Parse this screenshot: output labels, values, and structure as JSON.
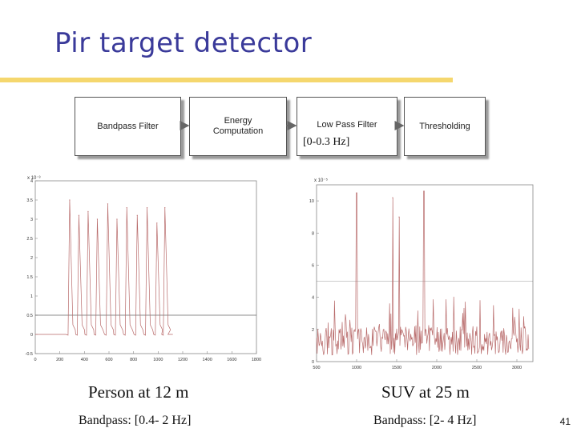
{
  "slide": {
    "title": "Pir target detector",
    "page_number": "41"
  },
  "pipeline": {
    "blocks": [
      {
        "id": "bandpass",
        "label": "Bandpass Filter"
      },
      {
        "id": "energy",
        "label": "Energy\nComputation"
      },
      {
        "id": "lowpass",
        "label": "Low Pass Filter"
      },
      {
        "id": "threshold",
        "label": "Thresholding"
      }
    ],
    "lowpass_note": "[0-0.3 Hz]"
  },
  "colors": {
    "title": "#3a3a9a",
    "rule": "#f5d76e",
    "signal": "#b86a6a",
    "threshold": "#555555"
  },
  "plots": [
    {
      "id": "person",
      "caption": "Person at 12 m",
      "subcaption": "Bandpass: [0.4- 2 Hz]",
      "exponent": "x 10⁻³",
      "x_ticks": [
        "0",
        "200",
        "400",
        "600",
        "800",
        "1000",
        "1200",
        "1400",
        "1600",
        "1800"
      ],
      "y_ticks": [
        "-0.5",
        "0",
        "0.5",
        "1",
        "1.5",
        "2",
        "2.5",
        "3",
        "3.5",
        "4"
      ],
      "xlim": [
        0,
        1800
      ],
      "ylim": [
        -0.5,
        4
      ],
      "threshold": 0.5,
      "peaks": [
        {
          "x": 280,
          "y": 3.5
        },
        {
          "x": 355,
          "y": 3.1
        },
        {
          "x": 430,
          "y": 3.2
        },
        {
          "x": 505,
          "y": 3.0
        },
        {
          "x": 590,
          "y": 3.4
        },
        {
          "x": 665,
          "y": 3.0
        },
        {
          "x": 745,
          "y": 3.3
        },
        {
          "x": 830,
          "y": 3.1
        },
        {
          "x": 910,
          "y": 3.3
        },
        {
          "x": 990,
          "y": 2.9
        },
        {
          "x": 1055,
          "y": 3.3
        }
      ]
    },
    {
      "id": "suv",
      "caption": "SUV at 25 m",
      "subcaption": "Bandpass: [2- 4 Hz]",
      "exponent": "x 10⁻⁵",
      "x_ticks": [
        "500",
        "1000",
        "1500",
        "2000",
        "2500",
        "3000"
      ],
      "y_ticks": [
        "0",
        "2",
        "4",
        "6",
        "8",
        "10"
      ],
      "xlim": [
        500,
        3200
      ],
      "ylim": [
        0,
        11
      ],
      "threshold": 5,
      "peaks": [
        {
          "x": 1000,
          "y": 10.5
        },
        {
          "x": 1450,
          "y": 10.2
        },
        {
          "x": 1530,
          "y": 9.0
        },
        {
          "x": 1840,
          "y": 10.6
        }
      ]
    }
  ]
}
